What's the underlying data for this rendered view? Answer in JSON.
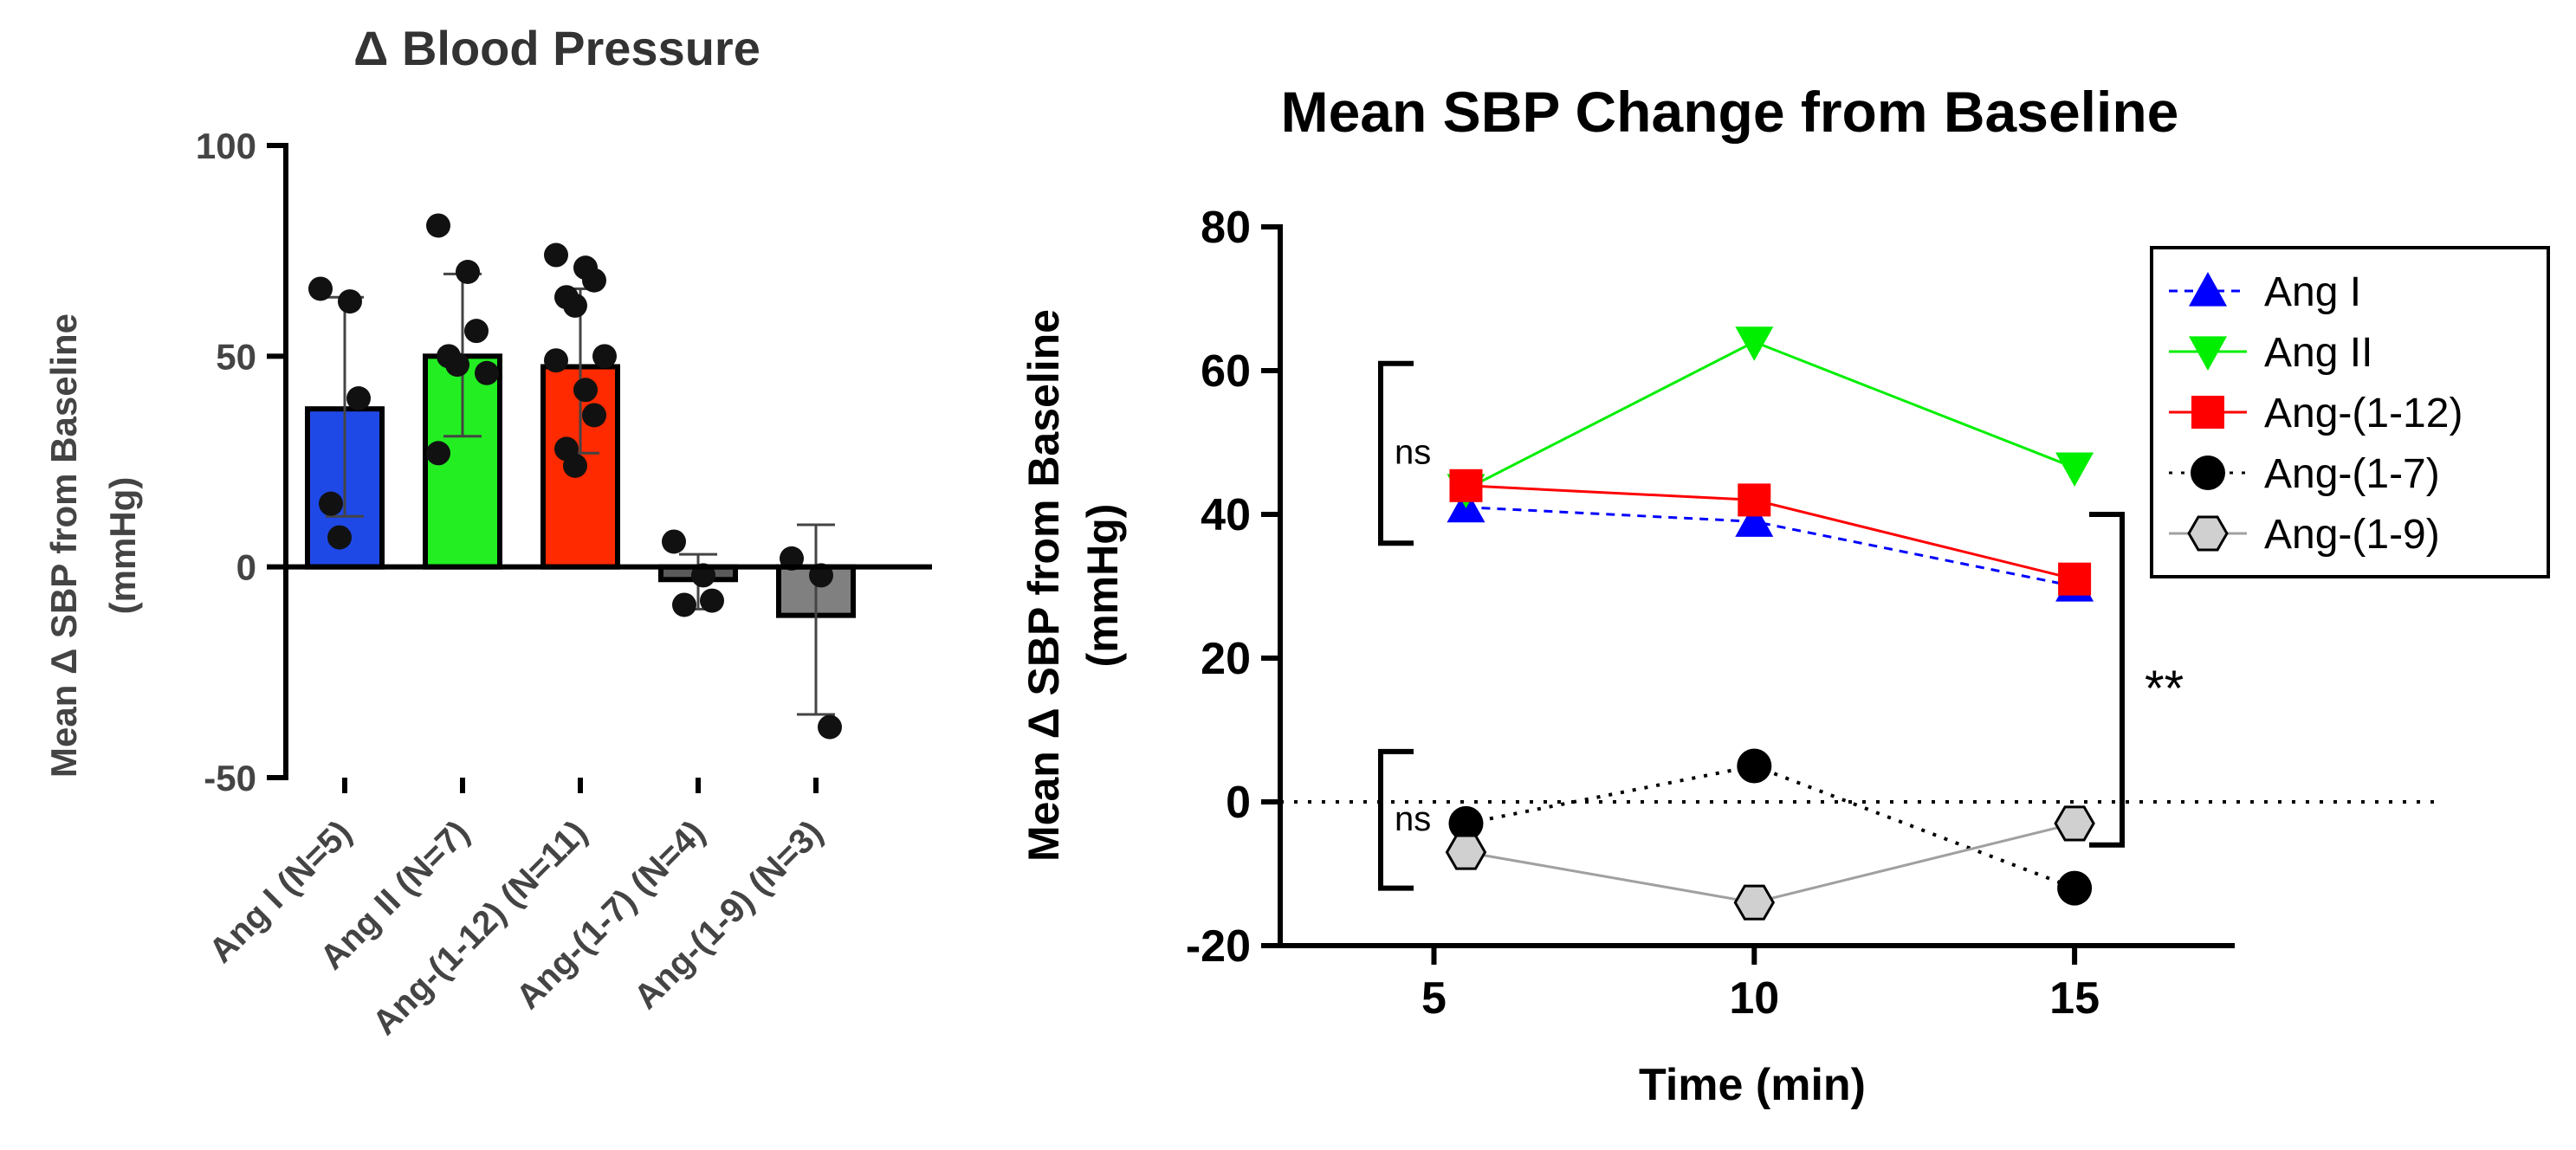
{
  "chart_data": [
    {
      "type": "bar",
      "title": "Δ Blood Pressure",
      "ylabel_line1": "Mean Δ SBP from Baseline",
      "ylabel_line2": "(mmHg)",
      "xlabel": "",
      "ylim": [
        -50,
        100
      ],
      "yticks": [
        -50,
        0,
        50,
        100
      ],
      "ytick_labels": [
        "-50",
        "0",
        "50",
        "100"
      ],
      "grid": false,
      "categories": [
        "Ang I (N=5)",
        "Ang II (N=7)",
        "Ang-(1-12) (N=11)",
        "Ang-(1-7) (N=4)",
        "Ang-(1-9) (N=3)"
      ],
      "values": [
        37.5,
        50,
        47.5,
        -3,
        -11.5
      ],
      "error_upper": [
        64,
        69.5,
        66,
        3,
        10
      ],
      "error_lower": [
        12,
        31,
        27,
        -10,
        -35
      ],
      "colors": [
        "#1f49e6",
        "#22ee22",
        "#ff2a00",
        "#5a5a5a",
        "#808080"
      ],
      "points": [
        [
          66,
          63,
          40,
          15,
          7
        ],
        [
          81,
          70,
          56,
          50,
          48,
          46,
          27
        ],
        [
          74,
          71,
          68,
          64,
          62,
          50,
          49,
          42,
          36,
          28,
          24
        ],
        [
          6,
          -2,
          -8,
          -9
        ],
        [
          2,
          -2,
          -38
        ]
      ]
    },
    {
      "type": "line",
      "title": "Mean SBP Change from Baseline",
      "xlabel": "Time (min)",
      "ylabel_line1": "Mean Δ SBP from Baseline",
      "ylabel_line2": "(mmHg)",
      "xlim": [
        2.6,
        17.5
      ],
      "ylim": [
        -20,
        80
      ],
      "xticks": [
        5,
        10,
        15
      ],
      "xtick_labels": [
        "5",
        "10",
        "15"
      ],
      "yticks": [
        -20,
        0,
        20,
        40,
        60,
        80
      ],
      "ytick_labels": [
        "-20",
        "0",
        "20",
        "40",
        "60",
        "80"
      ],
      "reference_line_y": 0,
      "legend_position": "top-right",
      "series": [
        {
          "name": "Ang I",
          "x": [
            5.5,
            10,
            15
          ],
          "values": [
            41,
            39,
            30
          ],
          "color": "#0000ff",
          "marker": "triangle-up",
          "line_style": "dashed"
        },
        {
          "name": "Ang II",
          "x": [
            5.5,
            10,
            15
          ],
          "values": [
            43.5,
            64,
            46.5
          ],
          "color": "#00ee00",
          "marker": "triangle-down",
          "line_style": "solid"
        },
        {
          "name": "Ang-(1-12)",
          "x": [
            5.5,
            10,
            15
          ],
          "values": [
            44,
            42,
            31
          ],
          "color": "#ff0000",
          "marker": "square",
          "line_style": "solid"
        },
        {
          "name": "Ang-(1-7)",
          "x": [
            5.5,
            10,
            15
          ],
          "values": [
            -3,
            5,
            -12
          ],
          "color": "#000000",
          "marker": "circle",
          "line_style": "dotted"
        },
        {
          "name": "Ang-(1-9)",
          "x": [
            5.5,
            10,
            15
          ],
          "values": [
            -7,
            -14,
            -3
          ],
          "color": "#a0a0a0",
          "marker": "hexagon",
          "line_style": "solid"
        }
      ],
      "annotations": [
        {
          "text": "ns",
          "y_range": [
            36,
            61
          ]
        },
        {
          "text": "ns",
          "y_range": [
            -12,
            7
          ]
        },
        {
          "text": "**",
          "y_range": [
            -6,
            40
          ]
        }
      ]
    }
  ]
}
